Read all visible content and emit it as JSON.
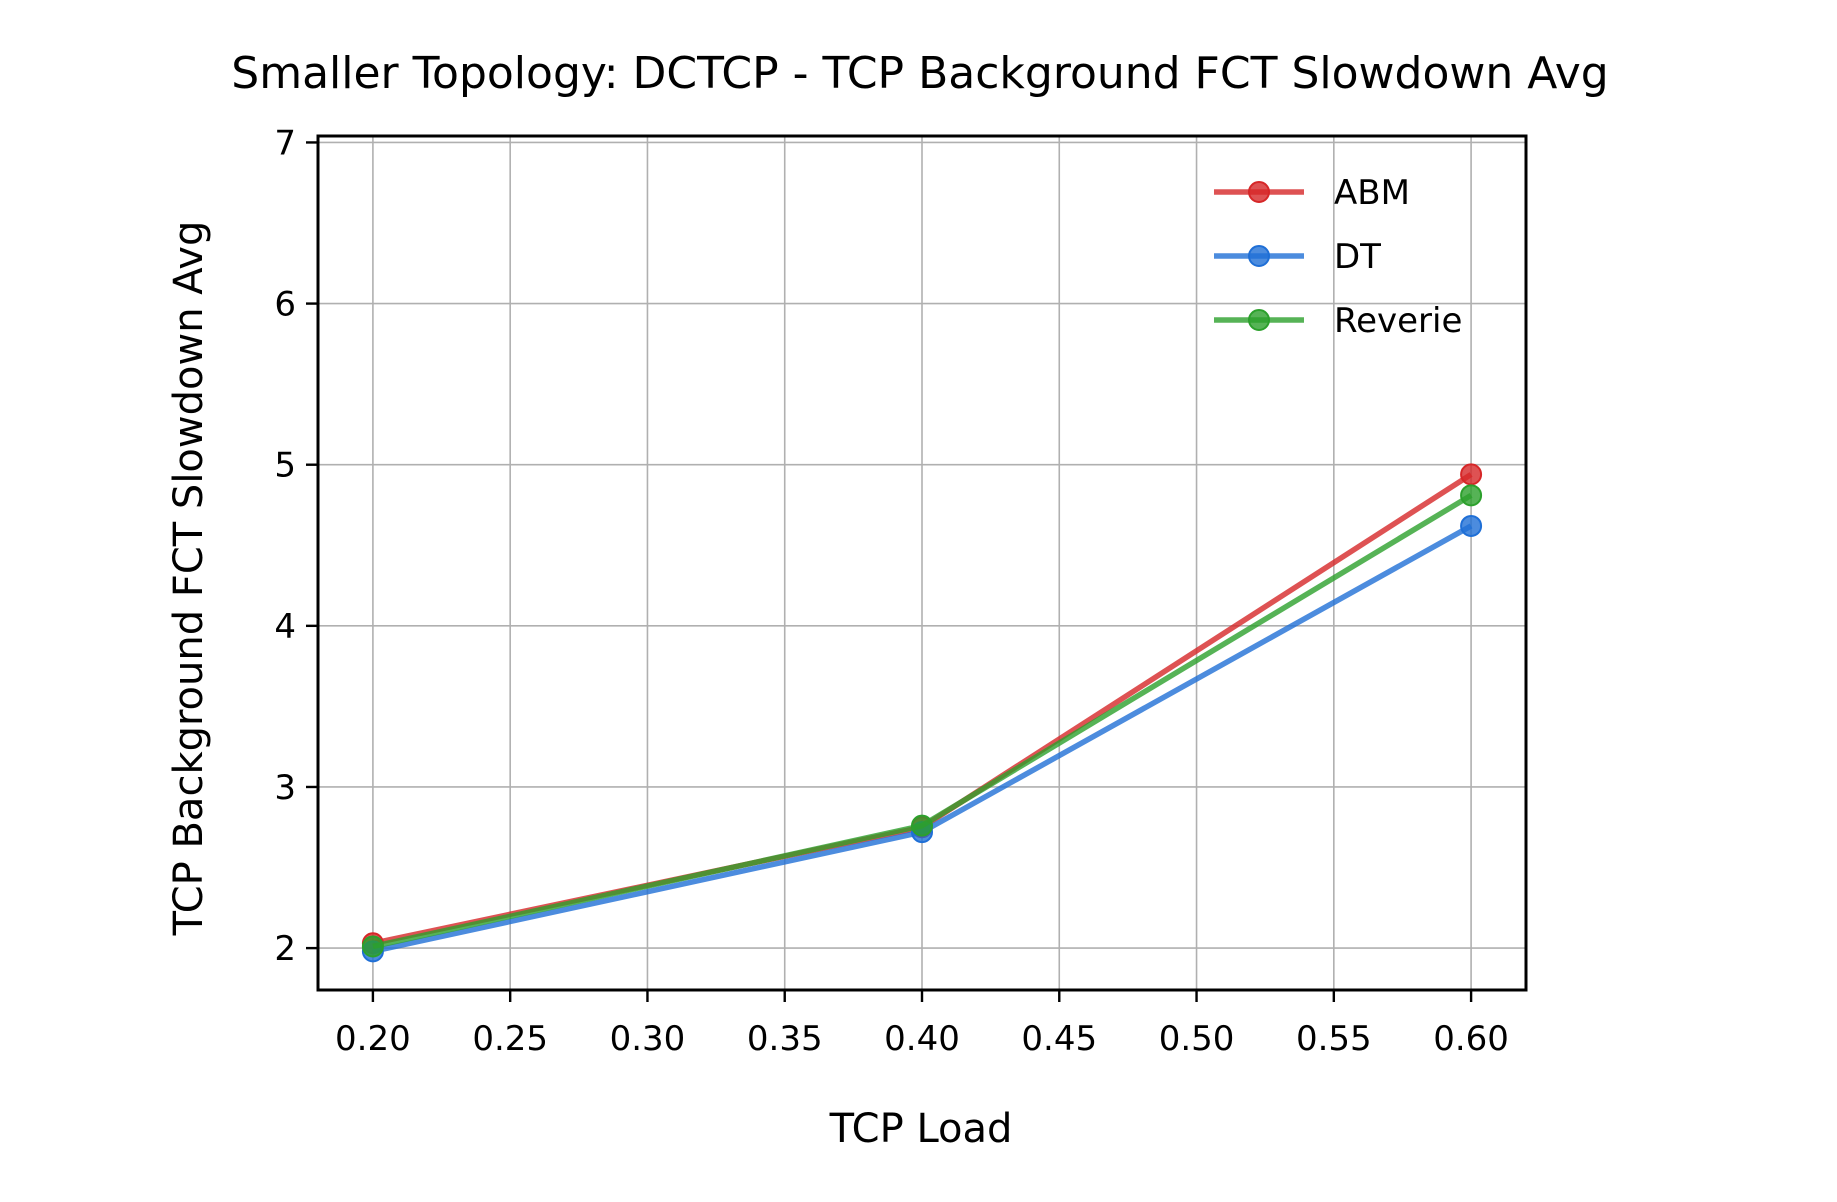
{
  "chart_data": {
    "type": "line",
    "title": "Smaller Topology: DCTCP - TCP Background FCT Slowdown Avg",
    "xlabel": "TCP Load",
    "ylabel": "TCP Background FCT Slowdown Avg",
    "x": [
      0.2,
      0.4,
      0.6
    ],
    "xlim": [
      0.18,
      0.62
    ],
    "ylim": [
      1.74,
      7.04
    ],
    "xticks": [
      "0.20",
      "0.25",
      "0.30",
      "0.35",
      "0.40",
      "0.45",
      "0.50",
      "0.55",
      "0.60"
    ],
    "yticks": [
      "2",
      "3",
      "4",
      "5",
      "6",
      "7"
    ],
    "grid": true,
    "legend_position": "top-right",
    "series": [
      {
        "name": "ABM",
        "color": "#d62728",
        "values": [
          2.03,
          2.75,
          4.94
        ]
      },
      {
        "name": "DT",
        "color": "#1f6fd6",
        "values": [
          1.98,
          2.72,
          4.62
        ]
      },
      {
        "name": "Reverie",
        "color": "#2ca02c",
        "values": [
          2.01,
          2.76,
          4.81
        ]
      }
    ]
  }
}
